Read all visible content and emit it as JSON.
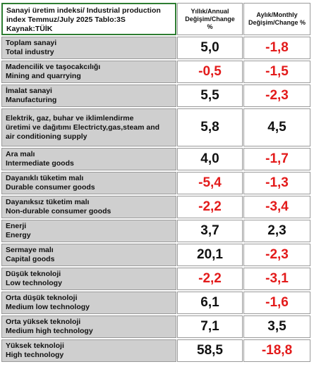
{
  "header": {
    "title_line1": "Sanayi üretim indeksi/ Industrial production",
    "title_line2": "index Temmuz/July 2025 Tablo:3S",
    "title_line3": "Kaynak:TÜİK",
    "col_annual_1": "Yıllık/Annual",
    "col_annual_2": "Değişim/Change",
    "col_annual_3": "%",
    "col_monthly_1": "Aylık/Monthly",
    "col_monthly_2": "Değişim/Change %"
  },
  "rows": [
    {
      "line1": "Toplam sanayi",
      "line2": "Total industry",
      "line3": "",
      "annual": "5,0",
      "monthly": "-1,8"
    },
    {
      "line1": "Madencilik ve taşocakcılığı",
      "line2": "Mining and quarrying",
      "line3": "",
      "annual": "-0,5",
      "monthly": "-1,5"
    },
    {
      "line1": "İmalat sanayi",
      "line2": "Manufacturing",
      "line3": "",
      "annual": "5,5",
      "monthly": "-2,3"
    },
    {
      "line1": "Elektrik, gaz, buhar ve iklimlendirme",
      "line2": "üretimi ve dağıtımı Electricty,gas,steam and",
      "line3": "air conditioning supply",
      "annual": "5,8",
      "monthly": "4,5"
    },
    {
      "line1": "Ara malı",
      "line2": "Intermediate goods",
      "line3": "",
      "annual": "4,0",
      "monthly": "-1,7"
    },
    {
      "line1": "Dayanıklı tüketim malı",
      "line2": "Durable consumer goods",
      "line3": "",
      "annual": "-5,4",
      "monthly": "-1,3"
    },
    {
      "line1": "Dayanıksız tüketim malı",
      "line2": "Non-durable consumer goods",
      "line3": "",
      "annual": "-2,2",
      "monthly": "-3,4"
    },
    {
      "line1": "Enerji",
      "line2": "Energy",
      "line3": "",
      "annual": "3,7",
      "monthly": "2,3"
    },
    {
      "line1": "Sermaye malı",
      "line2": "Capital goods",
      "line3": "",
      "annual": "20,1",
      "monthly": "-2,3"
    },
    {
      "line1": "Düşük teknoloji",
      "line2": "Low technology",
      "line3": "",
      "annual": "-2,2",
      "monthly": "-3,1"
    },
    {
      "line1": "Orta düşük teknoloji",
      "line2": "Medium low technology",
      "line3": "",
      "annual": "6,1",
      "monthly": "-1,6"
    },
    {
      "line1": "Orta yüksek teknoloji",
      "line2": "Medium high technology",
      "line3": "",
      "annual": "7,1",
      "monthly": "3,5"
    },
    {
      "line1": "Yüksek teknoloji",
      "line2": "High technology",
      "line3": "",
      "annual": "58,5",
      "monthly": "-18,8"
    }
  ],
  "colors": {
    "negative": "#e31b1b",
    "positive": "#111111",
    "label_bg": "#cfcfcf",
    "header_border": "#2e7d32"
  }
}
